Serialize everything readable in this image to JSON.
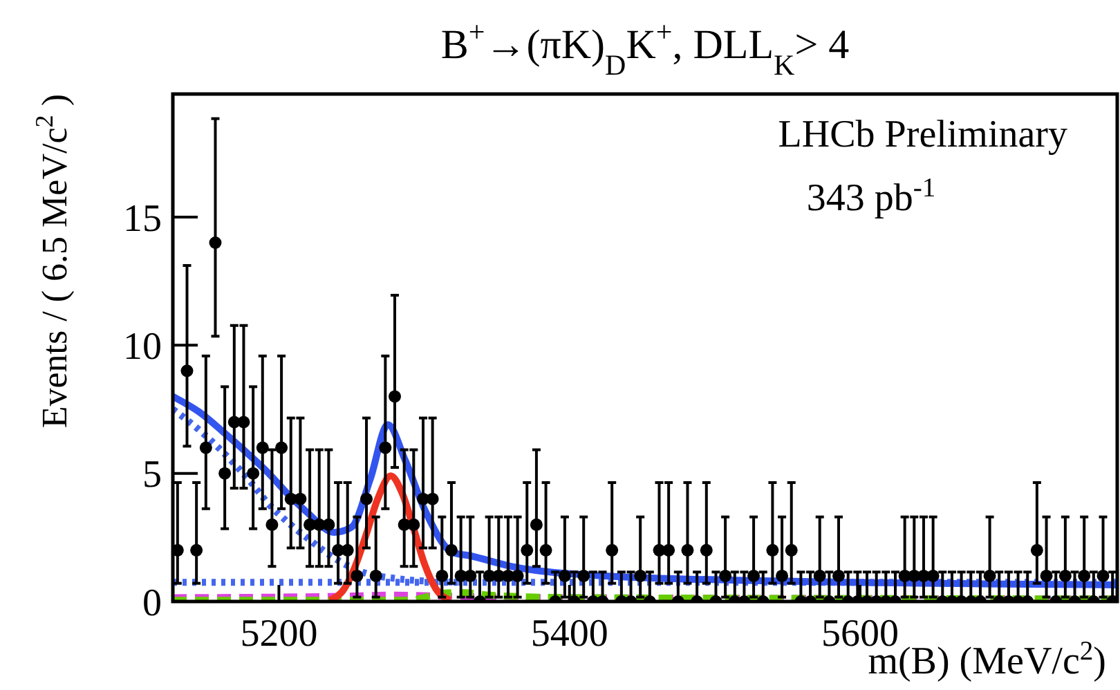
{
  "chart_data": {
    "type": "scatter",
    "title": "B$^{+}$→(πK)$_{D}$K$^{+}$, DLL$_{K}$> 4",
    "xlabel": "m(B) (MeV/c$^{2}$)",
    "ylabel": "Events / ( 6.5 MeV/c$^{2}$ )",
    "annotations": [
      "LHCb Preliminary",
      "343 pb$^{-1}$"
    ],
    "xlim": [
      5127,
      5777
    ],
    "xticks": [
      5200,
      5400,
      5600
    ],
    "ylim": [
      0,
      19.8
    ],
    "yticks": [
      0,
      5,
      10,
      15
    ],
    "grid": false,
    "series": [
      {
        "type": "line",
        "color": "#4466ee",
        "line_style": "dotted",
        "x": [
          5127,
          5777
        ],
        "values": [
          0.75,
          0.75
        ]
      },
      {
        "type": "line",
        "color": "#dd44dd",
        "line_style": "dashed",
        "x": [
          5127,
          5240,
          5280,
          5320,
          5400,
          5777
        ],
        "values": [
          0.15,
          0.2,
          0.25,
          0.2,
          0.15,
          0.1
        ]
      },
      {
        "type": "line",
        "color": "#66cc00",
        "line_style": "dashed",
        "x": [
          5127,
          5290,
          5310,
          5325,
          5345,
          5400,
          5777
        ],
        "values": [
          0.05,
          0.05,
          0.3,
          0.35,
          0.25,
          0.15,
          0.1
        ]
      },
      {
        "type": "line",
        "color": "#4466ee",
        "line_style": "dotted",
        "x": [
          5127,
          5145,
          5162,
          5180,
          5193,
          5206,
          5219,
          5238,
          5260,
          5280,
          5300,
          5330
        ],
        "values": [
          7.5,
          6.7,
          5.8,
          4.7,
          3.8,
          3.1,
          2.5,
          1.7,
          1.1,
          0.9,
          0.8,
          0.75
        ]
      },
      {
        "type": "line",
        "color": "#ee3322",
        "line_style": "solid",
        "x": [
          5235,
          5245,
          5252,
          5260,
          5268,
          5277,
          5285,
          5293,
          5300,
          5308,
          5318
        ],
        "values": [
          0.05,
          0.5,
          1.3,
          2.6,
          4.0,
          4.9,
          4.2,
          2.8,
          1.5,
          0.5,
          0.05
        ]
      },
      {
        "type": "line",
        "color": "#3355ee",
        "line_style": "solid",
        "x": [
          5127,
          5145,
          5162,
          5178,
          5193,
          5206,
          5219,
          5238,
          5250,
          5263,
          5275,
          5287,
          5301,
          5320,
          5330,
          5361,
          5424,
          5543,
          5777
        ],
        "values": [
          8.0,
          7.4,
          6.6,
          5.8,
          5.0,
          4.2,
          3.5,
          2.7,
          2.9,
          4.8,
          6.9,
          5.5,
          3.5,
          1.9,
          1.8,
          1.36,
          1.0,
          0.8,
          0.65
        ]
      },
      {
        "color": "#000000",
        "marker": "circle",
        "x": [
          5130.25,
          5136.75,
          5143.25,
          5149.75,
          5156.25,
          5162.75,
          5169.25,
          5175.75,
          5182.25,
          5188.75,
          5195.25,
          5201.75,
          5208.25,
          5214.75,
          5221.25,
          5227.75,
          5234.25,
          5240.75,
          5247.25,
          5253.75,
          5260.25,
          5266.75,
          5273.25,
          5279.75,
          5286.25,
          5292.75,
          5299.25,
          5305.75,
          5312.25,
          5318.75,
          5325.25,
          5331.75,
          5338.25,
          5344.75,
          5351.25,
          5357.75,
          5364.25,
          5370.75,
          5377.25,
          5383.75,
          5390.25,
          5396.75,
          5403.25,
          5409.75,
          5416.25,
          5422.75,
          5429.25,
          5435.75,
          5442.25,
          5448.75,
          5455.25,
          5461.75,
          5468.25,
          5474.75,
          5481.25,
          5487.75,
          5494.25,
          5500.75,
          5507.25,
          5513.75,
          5520.25,
          5526.75,
          5533.25,
          5539.75,
          5546.25,
          5552.75,
          5559.25,
          5565.75,
          5572.25,
          5578.75,
          5585.25,
          5591.75,
          5598.25,
          5604.75,
          5611.25,
          5617.75,
          5624.25,
          5630.75,
          5637.25,
          5643.75,
          5650.25,
          5656.75,
          5663.25,
          5669.75,
          5676.25,
          5682.75,
          5689.25,
          5695.75,
          5702.25,
          5708.75,
          5715.25,
          5721.75,
          5728.25,
          5734.75,
          5741.25,
          5747.75,
          5754.25,
          5760.75,
          5767.25,
          5773.75
        ],
        "values": [
          2,
          9,
          2,
          6,
          14,
          5,
          7,
          7,
          5,
          6,
          3,
          6,
          4,
          4,
          3,
          3,
          3,
          2,
          2,
          1,
          4,
          1,
          6,
          8,
          3,
          3,
          4,
          4,
          1,
          2,
          1,
          1,
          0,
          1,
          1,
          1,
          1,
          2,
          3,
          2,
          0,
          1,
          0,
          1,
          0,
          0,
          2,
          0,
          0,
          1,
          0,
          2,
          2,
          0,
          2,
          0,
          2,
          0,
          1,
          0,
          0,
          1,
          0,
          2,
          1,
          2,
          0,
          0,
          1,
          0,
          1,
          0,
          0,
          0,
          0,
          0,
          0,
          1,
          1,
          1,
          1,
          0,
          0,
          0,
          0,
          0,
          1,
          0,
          0,
          0,
          0,
          2,
          1,
          0,
          1,
          0,
          1,
          0,
          1,
          0
        ],
        "errors": [
          [
            0.71,
            4.64
          ],
          [
            6.06,
            13.11
          ],
          [
            0.71,
            4.64
          ],
          [
            3.62,
            9.58
          ],
          [
            10.35,
            18.84
          ],
          [
            2.84,
            8.38
          ],
          [
            4.42,
            10.77
          ],
          [
            4.42,
            10.77
          ],
          [
            2.84,
            8.38
          ],
          [
            3.62,
            9.58
          ],
          [
            1.37,
            5.92
          ],
          [
            3.62,
            9.58
          ],
          [
            2.09,
            7.16
          ],
          [
            2.09,
            7.16
          ],
          [
            1.37,
            5.92
          ],
          [
            1.37,
            5.92
          ],
          [
            1.37,
            5.92
          ],
          [
            0.71,
            4.64
          ],
          [
            0.71,
            4.64
          ],
          [
            0.17,
            3.3
          ],
          [
            2.09,
            7.16
          ],
          [
            0.17,
            3.3
          ],
          [
            3.62,
            9.58
          ],
          [
            5.23,
            11.95
          ],
          [
            1.37,
            5.92
          ],
          [
            1.37,
            5.92
          ],
          [
            2.09,
            7.16
          ],
          [
            2.09,
            7.16
          ],
          [
            0.17,
            3.3
          ],
          [
            0.71,
            4.64
          ],
          [
            0.17,
            3.3
          ],
          [
            0.17,
            3.3
          ],
          [
            0,
            1.15
          ],
          [
            0.17,
            3.3
          ],
          [
            0.17,
            3.3
          ],
          [
            0.17,
            3.3
          ],
          [
            0.17,
            3.3
          ],
          [
            0.71,
            4.64
          ],
          [
            1.37,
            5.92
          ],
          [
            0.71,
            4.64
          ],
          [
            0,
            1.15
          ],
          [
            0.17,
            3.3
          ],
          [
            0,
            1.15
          ],
          [
            0.17,
            3.3
          ],
          [
            0,
            1.15
          ],
          [
            0,
            1.15
          ],
          [
            0.71,
            4.64
          ],
          [
            0,
            1.15
          ],
          [
            0,
            1.15
          ],
          [
            0.17,
            3.3
          ],
          [
            0,
            1.15
          ],
          [
            0.71,
            4.64
          ],
          [
            0.71,
            4.64
          ],
          [
            0,
            1.15
          ],
          [
            0.71,
            4.64
          ],
          [
            0,
            1.15
          ],
          [
            0.71,
            4.64
          ],
          [
            0,
            1.15
          ],
          [
            0.17,
            3.3
          ],
          [
            0,
            1.15
          ],
          [
            0,
            1.15
          ],
          [
            0.17,
            3.3
          ],
          [
            0,
            1.15
          ],
          [
            0.71,
            4.64
          ],
          [
            0.17,
            3.3
          ],
          [
            0.71,
            4.64
          ],
          [
            0,
            1.15
          ],
          [
            0,
            1.15
          ],
          [
            0.17,
            3.3
          ],
          [
            0,
            1.15
          ],
          [
            0.17,
            3.3
          ],
          [
            0,
            1.15
          ],
          [
            0,
            1.15
          ],
          [
            0,
            1.15
          ],
          [
            0,
            1.15
          ],
          [
            0,
            1.15
          ],
          [
            0,
            1.15
          ],
          [
            0.17,
            3.3
          ],
          [
            0.17,
            3.3
          ],
          [
            0.17,
            3.3
          ],
          [
            0.17,
            3.3
          ],
          [
            0,
            1.15
          ],
          [
            0,
            1.15
          ],
          [
            0,
            1.15
          ],
          [
            0,
            1.15
          ],
          [
            0,
            1.15
          ],
          [
            0.17,
            3.3
          ],
          [
            0,
            1.15
          ],
          [
            0,
            1.15
          ],
          [
            0,
            1.15
          ],
          [
            0,
            1.15
          ],
          [
            0.71,
            4.64
          ],
          [
            0.17,
            3.3
          ],
          [
            0,
            1.15
          ],
          [
            0.17,
            3.3
          ],
          [
            0,
            1.15
          ],
          [
            0.17,
            3.3
          ],
          [
            0,
            1.15
          ],
          [
            0.17,
            3.3
          ],
          [
            0,
            1.15
          ]
        ]
      }
    ]
  }
}
